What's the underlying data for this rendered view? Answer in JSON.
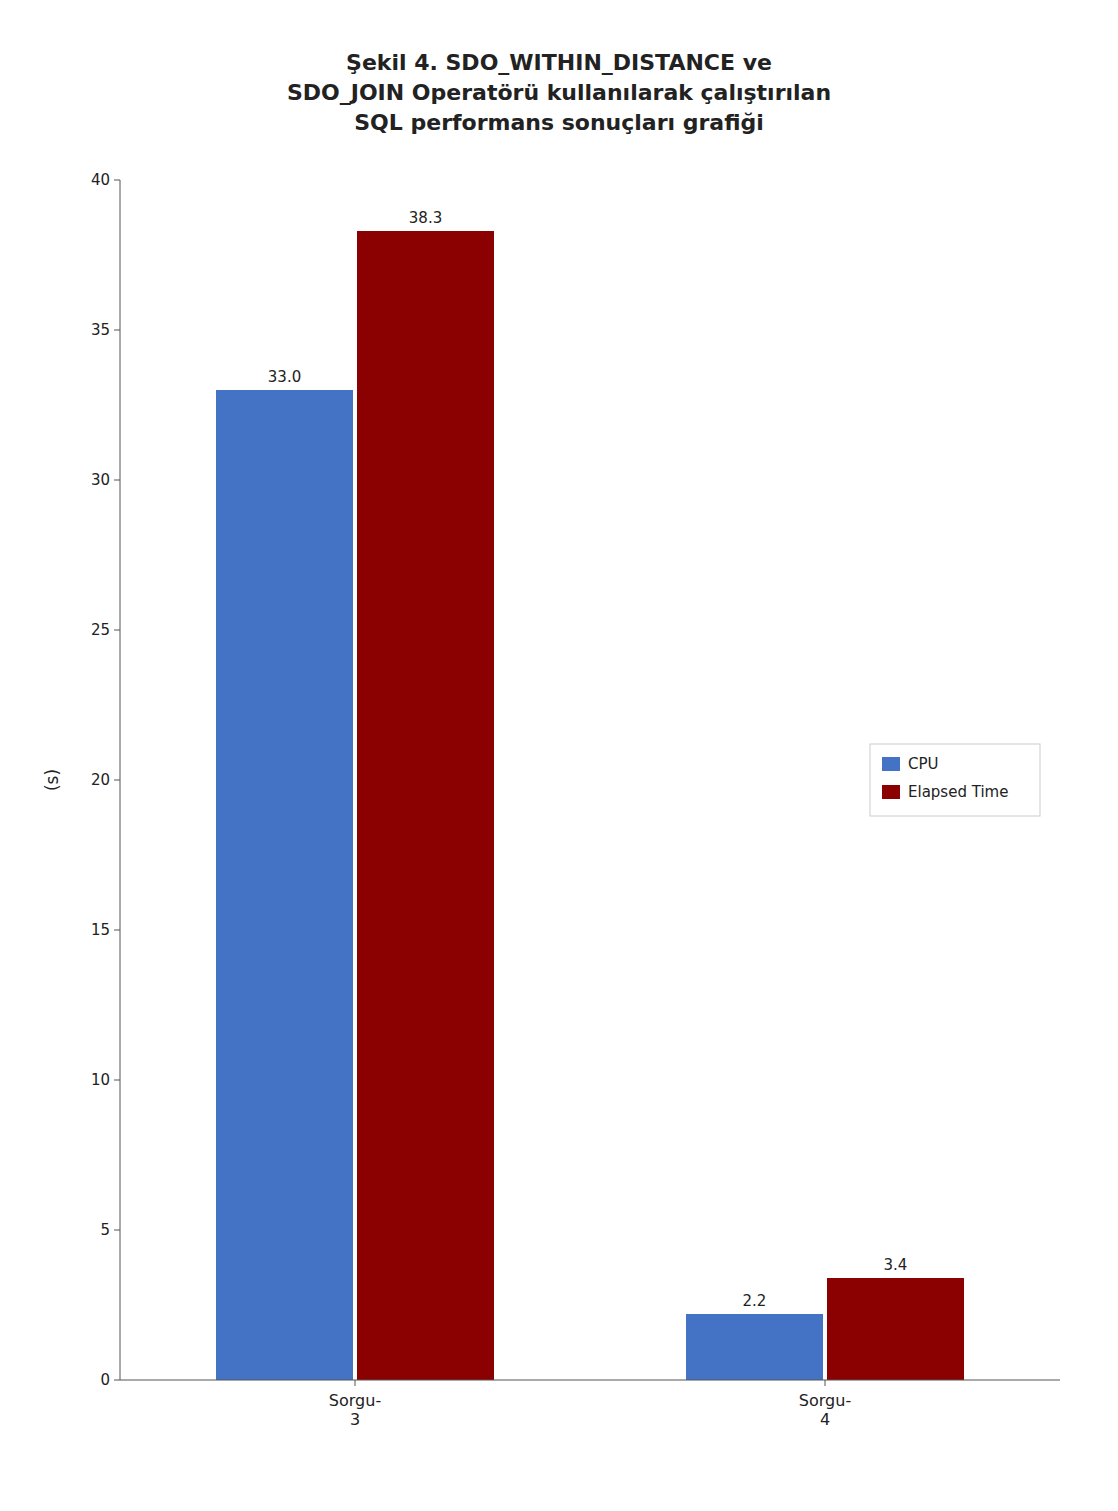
{
  "chart_data": {
    "type": "bar",
    "title": "Şekil 4. SDO_WITHIN_DISTANCE ve\nSDO_JOIN Operatörü kullanılarak çalıştırılan\nSQL performans sonuçları grafiği",
    "categories": [
      "Sorgu-\n3",
      "Sorgu-\n4"
    ],
    "series": [
      {
        "name": "CPU",
        "color": "#4472C4",
        "values": [
          33.0,
          2.2
        ],
        "value_labels": [
          "33.0",
          "2.2"
        ]
      },
      {
        "name": "Elapsed Time",
        "color": "#8B0000",
        "values": [
          38.3,
          3.4
        ]
      }
    ],
    "ylabel": "(s)",
    "ylim": [
      0,
      40
    ],
    "yticks": [
      0,
      5,
      10,
      15,
      20,
      25,
      30,
      35,
      40
    ],
    "grid": false,
    "legend": "right",
    "data_labels": true
  }
}
